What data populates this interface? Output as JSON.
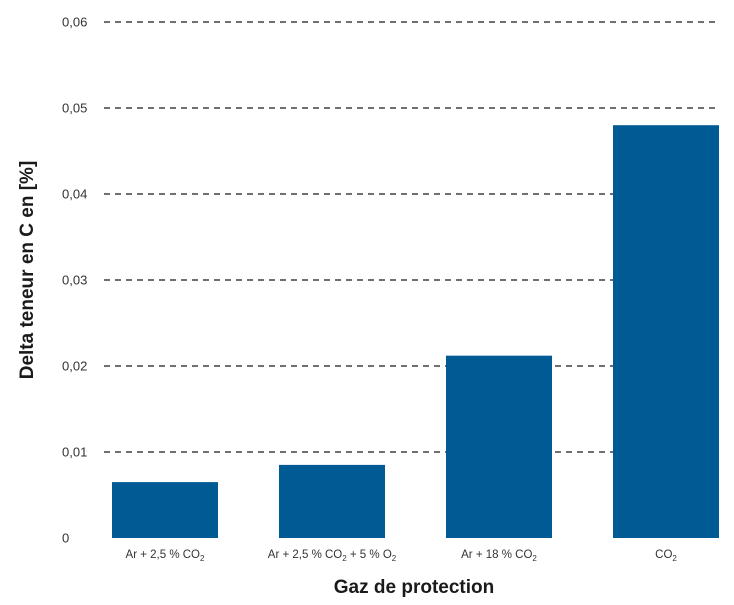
{
  "chart_data": {
    "type": "bar",
    "categories": [
      {
        "parts": [
          {
            "t": "Ar + 2,5 % CO"
          },
          {
            "t": "2",
            "sub": true
          }
        ]
      },
      {
        "parts": [
          {
            "t": "Ar + 2,5 % CO"
          },
          {
            "t": "2",
            "sub": true
          },
          {
            "t": " + 5 % O"
          },
          {
            "t": "2",
            "sub": true
          }
        ]
      },
      {
        "parts": [
          {
            "t": "Ar + 18 % CO"
          },
          {
            "t": "2",
            "sub": true
          }
        ]
      },
      {
        "parts": [
          {
            "t": "CO"
          },
          {
            "t": "2",
            "sub": true
          }
        ]
      }
    ],
    "values": [
      0.0065,
      0.0085,
      0.0212,
      0.048
    ],
    "yticks": [
      "0",
      "0,01",
      "0,02",
      "0,03",
      "0,04",
      "0,05",
      "0,06"
    ],
    "ylim": [
      0,
      0.06
    ],
    "xlabel": "Gaz de protection",
    "ylabel": "Delta teneur en C en [%]",
    "grid": true,
    "colors": {
      "bar": "#005a94",
      "grid": "#1a1a1a"
    }
  }
}
